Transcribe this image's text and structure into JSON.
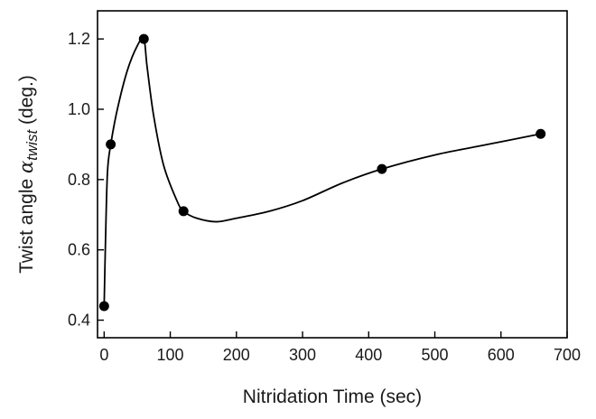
{
  "chart_data": {
    "type": "scatter",
    "title": "",
    "xlabel": "Nitridation Time (sec)",
    "ylabel_prefix": "Twist angle ",
    "ylabel_symbol": "α",
    "ylabel_subscript": "twist",
    "ylabel_suffix": " (deg.)",
    "xlim": [
      -10,
      700
    ],
    "ylim": [
      0.35,
      1.28
    ],
    "xticks": [
      0,
      100,
      200,
      300,
      400,
      500,
      600,
      700
    ],
    "yticks": [
      0.4,
      0.6,
      0.8,
      1.0,
      1.2
    ],
    "xtick_labels": [
      "0",
      "100",
      "200",
      "300",
      "400",
      "500",
      "600",
      "700"
    ],
    "ytick_labels": [
      "0.4",
      "0.6",
      "0.8",
      "1.0",
      "1.2"
    ],
    "grid": false,
    "legend": false,
    "marker_color": "#000000",
    "line_color": "#000000",
    "series": [
      {
        "x": [
          0,
          10,
          60,
          120,
          420,
          660
        ],
        "y": [
          0.44,
          0.9,
          1.2,
          0.71,
          0.83,
          0.93
        ]
      }
    ],
    "curve": {
      "x": [
        0,
        2,
        5,
        10,
        20,
        35,
        50,
        60,
        65,
        75,
        90,
        110,
        120,
        140,
        170,
        200,
        250,
        300,
        360,
        420,
        500,
        580,
        660
      ],
      "y": [
        0.44,
        0.62,
        0.82,
        0.9,
        1.0,
        1.11,
        1.18,
        1.2,
        1.12,
        0.98,
        0.84,
        0.74,
        0.71,
        0.69,
        0.68,
        0.69,
        0.71,
        0.74,
        0.79,
        0.83,
        0.87,
        0.9,
        0.93
      ]
    }
  }
}
